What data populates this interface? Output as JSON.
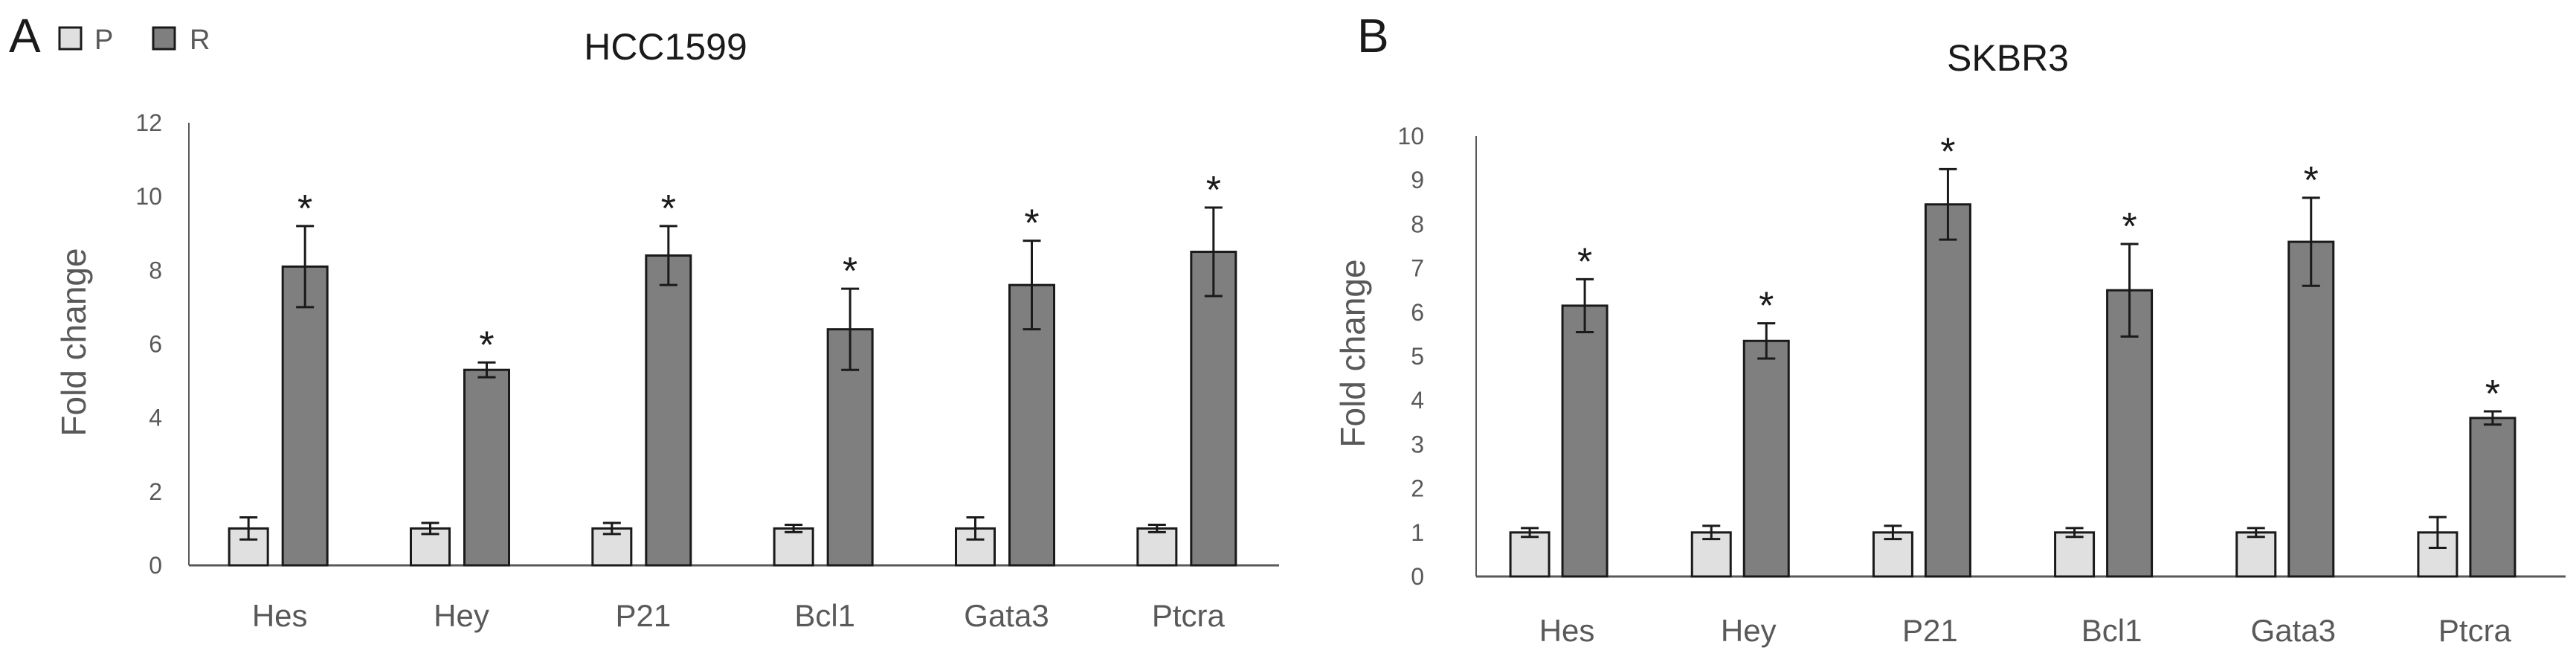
{
  "legend": {
    "items": [
      {
        "label": "P",
        "color": "#e0e0e0"
      },
      {
        "label": "R",
        "color": "#7f7f7f"
      }
    ]
  },
  "colors": {
    "p": "#e0e0e0",
    "r": "#7f7f7f",
    "stroke": "#1a1a1a",
    "axis": "#595959",
    "text": "#595959",
    "title": "#1a1a1a"
  },
  "significance_marker": "*",
  "chart_data": [
    {
      "panel": "A",
      "type": "bar",
      "title": "HCC1599",
      "ylabel": "Fold change",
      "xlabel": "",
      "ylim": [
        0,
        12
      ],
      "yticks": [
        0,
        2,
        4,
        6,
        8,
        10,
        12
      ],
      "grid": false,
      "categories": [
        "Hes",
        "Hey",
        "P21",
        "Bcl1",
        "Gata3",
        "Ptcra"
      ],
      "series": [
        {
          "name": "P",
          "values": [
            1.0,
            1.0,
            1.0,
            1.0,
            1.0,
            1.0
          ],
          "errors": [
            0.3,
            0.15,
            0.15,
            0.1,
            0.3,
            0.1
          ]
        },
        {
          "name": "R",
          "values": [
            8.1,
            5.3,
            8.4,
            6.4,
            7.6,
            8.5
          ],
          "errors": [
            1.1,
            0.2,
            0.8,
            1.1,
            1.2,
            1.2
          ]
        }
      ],
      "significant": [
        true,
        true,
        true,
        true,
        true,
        true
      ]
    },
    {
      "panel": "B",
      "type": "bar",
      "title": "SKBR3",
      "ylabel": "Fold change",
      "xlabel": "",
      "ylim": [
        0,
        10
      ],
      "yticks": [
        0,
        1,
        2,
        3,
        4,
        5,
        6,
        7,
        8,
        9,
        10
      ],
      "grid": false,
      "categories": [
        "Hes",
        "Hey",
        "P21",
        "Bcl1",
        "Gata3",
        "Ptcra"
      ],
      "series": [
        {
          "name": "P",
          "values": [
            1.0,
            1.0,
            1.0,
            1.0,
            1.0,
            1.0
          ],
          "errors": [
            0.1,
            0.15,
            0.15,
            0.1,
            0.1,
            0.35
          ]
        },
        {
          "name": "R",
          "values": [
            6.15,
            5.35,
            8.45,
            6.5,
            7.6,
            3.6
          ],
          "errors": [
            0.6,
            0.4,
            0.8,
            1.05,
            1.0,
            0.15
          ]
        }
      ],
      "significant": [
        true,
        true,
        true,
        true,
        true,
        true
      ]
    }
  ]
}
